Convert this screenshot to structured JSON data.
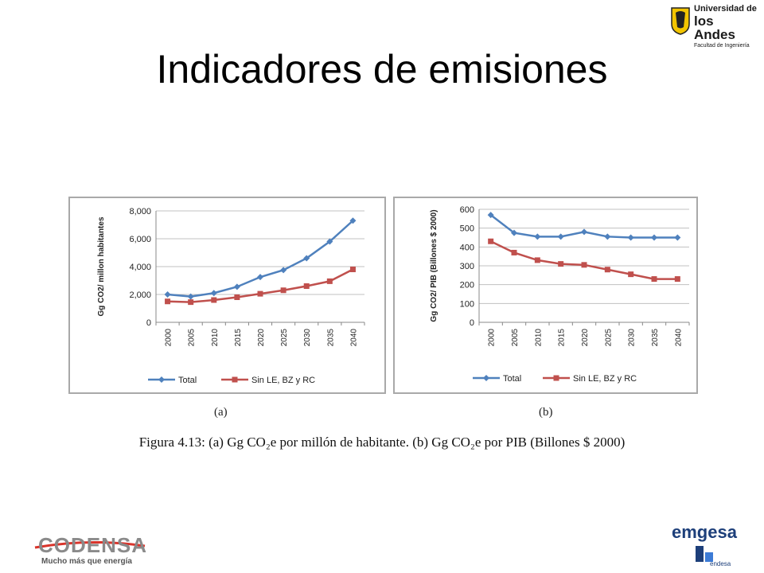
{
  "slide": {
    "title": "Indicadores de emisiones",
    "figure_caption": "Figura 4.13: (a) Gg CO₂e por millón de habitante. (b) Gg CO₂e por PIB (Billones $ 2000)"
  },
  "logos": {
    "uniandes": {
      "line1": "Universidad de",
      "line2": "los Andes",
      "line3": "Facultad de Ingeniería",
      "color": "#f2c400"
    },
    "codensa": {
      "word": "CODENSA",
      "tagline": "Mucho más que energía"
    },
    "emgesa": {
      "word": "emgesa",
      "sub": "endesa"
    }
  },
  "colors": {
    "total": "#4f81bd",
    "sin": "#c0504d",
    "grid": "#c0c0c0"
  },
  "chart_data": [
    {
      "type": "line",
      "sub_label": "(a)",
      "ylabel": "Gg CO2/ millon habitantes",
      "categories": [
        "2000",
        "2005",
        "2010",
        "2015",
        "2020",
        "2025",
        "2030",
        "2035",
        "2040"
      ],
      "ylim": [
        0,
        8000
      ],
      "yticks": [
        "0",
        "2,000",
        "4,000",
        "6,000",
        "8,000"
      ],
      "grid": true,
      "legend": "bottom",
      "series": [
        {
          "name": "Total",
          "marker": "diamond",
          "values": [
            2000,
            1850,
            2100,
            2550,
            3250,
            3750,
            4600,
            5800,
            7300
          ]
        },
        {
          "name": "Sin LE, BZ y RC",
          "marker": "square",
          "values": [
            1500,
            1450,
            1600,
            1800,
            2050,
            2300,
            2600,
            2950,
            3800
          ]
        }
      ]
    },
    {
      "type": "line",
      "sub_label": "(b)",
      "ylabel": "Gg CO2/ PIB (Billones $ 2000)",
      "categories": [
        "2000",
        "2005",
        "2010",
        "2015",
        "2020",
        "2025",
        "2030",
        "2035",
        "2040"
      ],
      "ylim": [
        0,
        600
      ],
      "yticks": [
        "0",
        "100",
        "200",
        "300",
        "400",
        "500",
        "600"
      ],
      "grid": true,
      "legend": "bottom",
      "series": [
        {
          "name": "Total",
          "marker": "diamond",
          "values": [
            570,
            475,
            455,
            455,
            480,
            455,
            450,
            450,
            450
          ]
        },
        {
          "name": "Sin LE, BZ y RC",
          "marker": "square",
          "values": [
            430,
            370,
            330,
            310,
            305,
            280,
            255,
            230,
            230
          ]
        }
      ]
    }
  ]
}
